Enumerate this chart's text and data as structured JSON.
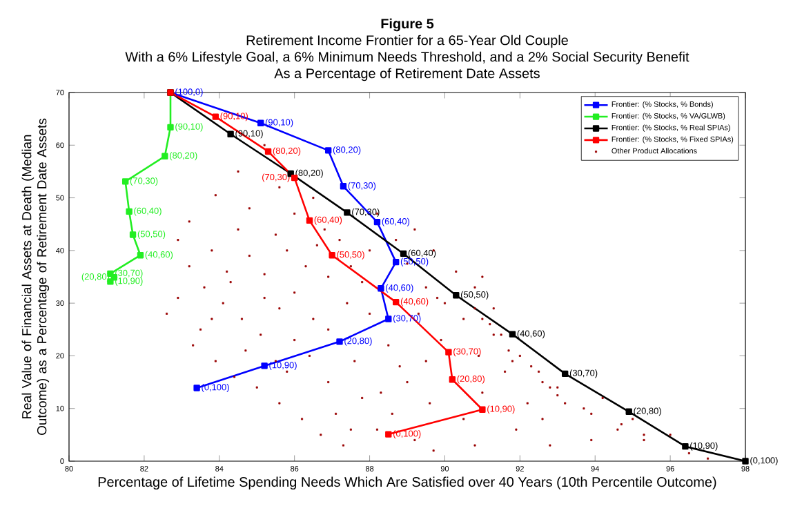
{
  "chart_data": {
    "type": "line",
    "title": "Figure 5",
    "subtitle": "Retirement Income Frontier for a 65-Year Old Couple",
    "annotations": [
      "With a 6% Lifestyle Goal, a 6% Minimum Needs Threshold, and a 2% Social Security Benefit",
      "As a Percentage of Retirement Date Assets",
      {
        "text": "(100,0)",
        "x": 82.7,
        "y": 70
      },
      {
        "text": "(90,10)",
        "x": 85.1,
        "y": 64.2
      },
      {
        "text": "(80,20)",
        "x": 86.9,
        "y": 59.0
      },
      {
        "text": "(70,30)",
        "x": 87.3,
        "y": 52.2
      },
      {
        "text": "(60,40)",
        "x": 88.2,
        "y": 45.4
      },
      {
        "text": "(50,50)",
        "x": 88.7,
        "y": 37.8
      },
      {
        "text": "(40,60)",
        "x": 88.3,
        "y": 32.8
      },
      {
        "text": "(30,70)",
        "x": 88.5,
        "y": 27.0
      },
      {
        "text": "(20,80)",
        "x": 87.2,
        "y": 22.7
      },
      {
        "text": "(10,90)",
        "x": 85.2,
        "y": 18.1
      },
      {
        "text": "(0,100)",
        "x": 83.4,
        "y": 13.9
      },
      {
        "text": "(90,10)",
        "x": 82.7,
        "y": 63.4
      },
      {
        "text": "(80,20)",
        "x": 82.55,
        "y": 57.9
      },
      {
        "text": "(70,30)",
        "x": 81.5,
        "y": 53.1
      },
      {
        "text": "(60,40)",
        "x": 81.6,
        "y": 47.4
      },
      {
        "text": "(50,50)",
        "x": 81.7,
        "y": 43.0
      },
      {
        "text": "(40,60)",
        "x": 81.9,
        "y": 39.1
      },
      {
        "text": "(30,70)",
        "x": 81.1,
        "y": 35.6
      },
      {
        "text": "(20,80)",
        "x": 81.2,
        "y": 34.9
      },
      {
        "text": "(10,90)",
        "x": 81.1,
        "y": 34.1
      },
      {
        "text": "(90,10)",
        "x": 84.3,
        "y": 62.1
      },
      {
        "text": "(80,20)",
        "x": 85.9,
        "y": 54.6
      },
      {
        "text": "(70,30)",
        "x": 87.4,
        "y": 47.2
      },
      {
        "text": "(60,40)",
        "x": 88.9,
        "y": 39.4
      },
      {
        "text": "(50,50)",
        "x": 90.3,
        "y": 31.5
      },
      {
        "text": "(40,60)",
        "x": 91.8,
        "y": 24.1
      },
      {
        "text": "(30,70)",
        "x": 93.2,
        "y": 16.6
      },
      {
        "text": "(20,80)",
        "x": 94.9,
        "y": 9.4
      },
      {
        "text": "(10,90)",
        "x": 96.4,
        "y": 2.8
      },
      {
        "text": "(0,100)",
        "x": 98.0,
        "y": 0
      },
      {
        "text": "(90,10)",
        "x": 83.9,
        "y": 65.4
      },
      {
        "text": "(80,20)",
        "x": 85.3,
        "y": 58.8
      },
      {
        "text": "(70,30)",
        "x": 86.0,
        "y": 53.8
      },
      {
        "text": "(60,40)",
        "x": 86.4,
        "y": 45.7
      },
      {
        "text": "(50,50)",
        "x": 87.0,
        "y": 39.1
      },
      {
        "text": "(40,60)",
        "x": 88.7,
        "y": 30.2
      },
      {
        "text": "(30,70)",
        "x": 90.1,
        "y": 20.7
      },
      {
        "text": "(20,80)",
        "x": 90.2,
        "y": 15.5
      },
      {
        "text": "(10,90)",
        "x": 91.0,
        "y": 9.8
      },
      {
        "text": "(0,100)",
        "x": 88.5,
        "y": 5.1
      }
    ],
    "xlabel": "Percentage of Lifetime Spending Needs Which Are Satisfied over 40 Years (10th Percentile Outcome)",
    "ylabel": "Real Value of Financial Assets at Death (Median Outcome) as a Percentage of Retirement Date Assets",
    "xlim": [
      80,
      98
    ],
    "ylim": [
      0,
      70
    ],
    "xticks": [
      80,
      82,
      84,
      86,
      88,
      90,
      92,
      94,
      96,
      98
    ],
    "yticks": [
      0,
      10,
      20,
      30,
      40,
      50,
      60,
      70
    ],
    "legend": "top right",
    "marker": "square",
    "line_style": "solid",
    "series": [
      {
        "name": "Frontier: (% Stocks, % Bonds)",
        "color": "#0000ff",
        "x": [
          82.7,
          85.1,
          86.9,
          87.3,
          88.2,
          88.7,
          88.3,
          88.5,
          87.2,
          85.2,
          83.4
        ],
        "values": [
          70,
          64.2,
          59.0,
          52.2,
          45.4,
          37.8,
          32.8,
          27.0,
          22.7,
          18.1,
          13.9
        ]
      },
      {
        "name": "Frontier: (% Stocks, % VA/GLWB)",
        "color": "#22ee22",
        "x": [
          82.7,
          82.7,
          82.55,
          81.5,
          81.6,
          81.7,
          81.9,
          81.1,
          81.2,
          81.1
        ],
        "values": [
          70,
          63.4,
          57.9,
          53.1,
          47.4,
          43.0,
          39.1,
          35.6,
          34.9,
          34.1
        ]
      },
      {
        "name": "Frontier: (% Stocks, % Real SPIAs)",
        "color": "#000000",
        "x": [
          82.7,
          84.3,
          85.9,
          87.4,
          88.9,
          90.3,
          91.8,
          93.2,
          94.9,
          96.4,
          98.0
        ],
        "values": [
          70,
          62.1,
          54.6,
          47.2,
          39.4,
          31.5,
          24.1,
          16.6,
          9.4,
          2.8,
          0
        ]
      },
      {
        "name": "Frontier: (% Stocks, % Fixed SPIAs)",
        "color": "#ff0000",
        "x": [
          82.7,
          83.9,
          85.3,
          86.0,
          86.4,
          87.0,
          88.7,
          90.1,
          90.2,
          91.0,
          88.5
        ],
        "values": [
          70,
          65.4,
          58.8,
          53.8,
          45.7,
          39.1,
          30.2,
          20.7,
          15.5,
          9.8,
          5.1
        ]
      },
      {
        "name": "Other Product Allocations",
        "color": "#990000",
        "type": "scatter",
        "x": [
          85.2,
          84.5,
          85.6,
          83.9,
          84.8,
          86.5,
          86.0,
          84.5,
          85.5,
          86.8,
          87.2,
          83.2,
          82.9,
          83.8,
          84.8,
          85.8,
          86.3,
          83.2,
          84.2,
          85.2,
          86.9,
          87.5,
          88.0,
          89.0,
          89.7,
          89.2,
          88.2,
          90.3,
          91.0,
          90.8,
          89.8,
          90.8,
          91.0,
          91.3,
          92.0,
          92.5,
          94.2,
          95.0,
          96.0,
          97.0,
          96.5,
          95.3,
          94.7,
          93.9,
          92.8,
          91.9,
          90.8,
          89.7,
          89.2,
          88.2,
          87.3,
          86.7,
          86.2,
          85.6,
          85.0,
          84.4,
          83.9,
          83.3,
          83.5,
          82.6,
          82.9,
          83.6,
          84.1,
          84.6,
          85.1,
          85.6,
          86.0,
          86.5,
          86.9,
          87.4,
          87.8,
          88.0,
          87.6,
          86.4,
          85.8,
          86.9,
          87.8,
          88.6,
          89.0,
          89.5,
          89.9,
          90.5,
          91.3,
          91.2,
          91.8,
          92.6,
          93.0,
          93.9,
          94.6,
          95.3,
          92.8,
          93.0,
          92.2,
          91.6,
          91.0,
          90.5,
          89.6,
          88.8,
          88.5,
          87.1,
          86.0,
          84.7,
          83.8,
          89.3,
          90.0,
          91.5,
          92.6,
          93.7,
          93.2,
          91.7,
          92.3,
          88.3,
          87.5,
          85.5,
          84.3,
          86.6,
          85.2,
          90.9,
          89.5,
          88.7
        ],
        "values": [
          60,
          55,
          52,
          50.5,
          48,
          50,
          47,
          44,
          43,
          44,
          42,
          45.5,
          42,
          40,
          39,
          40,
          37,
          37,
          36,
          35.5,
          35,
          37,
          40,
          37.5,
          40,
          44,
          47,
          36,
          35,
          33,
          31,
          29,
          27,
          24,
          20,
          17,
          12,
          8,
          5,
          0.5,
          1.5,
          5,
          7,
          4,
          3,
          6,
          3,
          2,
          4,
          6,
          3,
          5,
          8,
          11,
          14,
          16,
          19,
          22,
          25,
          28,
          31,
          33,
          30,
          27,
          24,
          29,
          32,
          27,
          25,
          30,
          34,
          28,
          19,
          20,
          17,
          15,
          12,
          9,
          15,
          19,
          23,
          27,
          29,
          26,
          19,
          15,
          12.5,
          9,
          6,
          4,
          14,
          14,
          11,
          17,
          13,
          8,
          11,
          18,
          22,
          9,
          23,
          21,
          27,
          28,
          30,
          24,
          8,
          10,
          11,
          21,
          18,
          13,
          6,
          19,
          34,
          41,
          31,
          20,
          33,
          42
        ]
      }
    ]
  }
}
